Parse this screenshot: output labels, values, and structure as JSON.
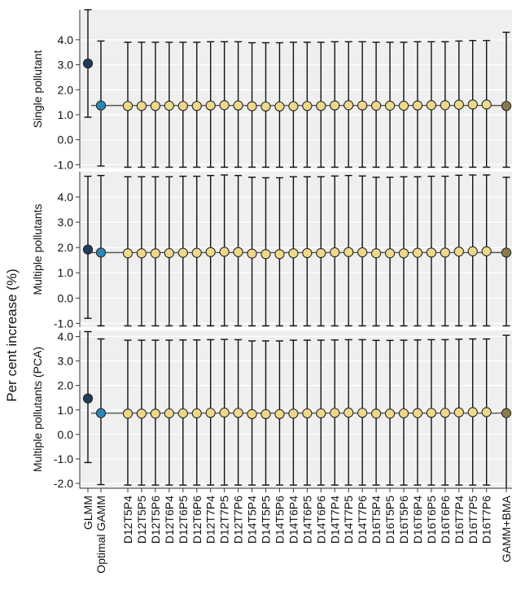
{
  "colors": {
    "panel_bg": "#efefef",
    "gridline": "#ffffff",
    "glmm": "#1e3a5c",
    "optimal_gamm": "#2b86b8",
    "models": "#eed88a",
    "gamm_bma": "#8c7a4c",
    "point_edge": "#2a2a2a",
    "reference_line": "#555555",
    "error_bar": "#111111"
  },
  "chart_data": {
    "type": "errorbar",
    "ylabel": "Per cent increase (%)",
    "categories": [
      "GLMM",
      "Optimal GAMM",
      "D12T5P4",
      "D12T5P5",
      "D12T5P6",
      "D12T6P4",
      "D12T6P5",
      "D12T6P6",
      "D12T7P4",
      "D12T7P5",
      "D12T7P6",
      "D14T5P4",
      "D14T5P5",
      "D14T5P6",
      "D14T6P4",
      "D14T6P5",
      "D14T6P6",
      "D14T7P4",
      "D14T7P5",
      "D14T7P6",
      "D16T5P4",
      "D16T5P5",
      "D16T5P6",
      "D16T6P4",
      "D16T6P5",
      "D16T6P6",
      "D16T7P4",
      "D16T7P5",
      "D16T7P6",
      "GAMM+BMA"
    ],
    "panels": [
      {
        "label": "Single pollutant",
        "ylim": [
          -1.15,
          5.2
        ],
        "yticks": [
          -1.0,
          0.0,
          1.0,
          2.0,
          3.0,
          4.0
        ],
        "tick_labels": [
          "-1.0",
          "0.0",
          "1.0",
          "2.0",
          "3.0",
          "4.0"
        ],
        "reference": 1.37,
        "estimates": [
          3.05,
          1.37,
          1.35,
          1.35,
          1.35,
          1.36,
          1.35,
          1.35,
          1.37,
          1.38,
          1.37,
          1.34,
          1.33,
          1.33,
          1.34,
          1.35,
          1.35,
          1.37,
          1.38,
          1.37,
          1.36,
          1.36,
          1.36,
          1.37,
          1.38,
          1.38,
          1.4,
          1.41,
          1.41,
          1.35
        ],
        "lower": [
          0.9,
          -1.05,
          -1.1,
          -1.1,
          -1.1,
          -1.1,
          -1.1,
          -1.1,
          -1.1,
          -1.1,
          -1.1,
          -1.1,
          -1.1,
          -1.1,
          -1.1,
          -1.1,
          -1.1,
          -1.1,
          -1.1,
          -1.1,
          -1.1,
          -1.1,
          -1.1,
          -1.1,
          -1.1,
          -1.1,
          -1.1,
          -1.1,
          -1.1,
          -1.1
        ],
        "upper": [
          5.2,
          3.95,
          3.9,
          3.9,
          3.9,
          3.9,
          3.9,
          3.9,
          3.92,
          3.92,
          3.92,
          3.88,
          3.88,
          3.88,
          3.9,
          3.9,
          3.9,
          3.92,
          3.92,
          3.92,
          3.9,
          3.9,
          3.9,
          3.92,
          3.92,
          3.92,
          3.95,
          3.97,
          3.97,
          4.3
        ]
      },
      {
        "label": "Multiple pollutants",
        "ylim": [
          -1.15,
          5.0
        ],
        "yticks": [
          -1.0,
          0.0,
          1.0,
          2.0,
          3.0,
          4.0
        ],
        "tick_labels": [
          "-1.0",
          "0.0",
          "1.0",
          "2.0",
          "3.0",
          "4.0"
        ],
        "reference": 1.8,
        "estimates": [
          1.92,
          1.8,
          1.77,
          1.77,
          1.77,
          1.78,
          1.79,
          1.79,
          1.82,
          1.83,
          1.82,
          1.76,
          1.74,
          1.74,
          1.77,
          1.78,
          1.78,
          1.81,
          1.82,
          1.81,
          1.77,
          1.77,
          1.77,
          1.79,
          1.8,
          1.8,
          1.84,
          1.85,
          1.85,
          1.8
        ],
        "lower": [
          -0.8,
          -1.1,
          -1.1,
          -1.1,
          -1.1,
          -1.1,
          -1.1,
          -1.1,
          -1.1,
          -1.1,
          -1.1,
          -1.1,
          -1.1,
          -1.1,
          -1.1,
          -1.1,
          -1.1,
          -1.1,
          -1.1,
          -1.1,
          -1.1,
          -1.1,
          -1.1,
          -1.1,
          -1.1,
          -1.1,
          -1.1,
          -1.1,
          -1.1,
          -1.1
        ],
        "upper": [
          4.82,
          4.85,
          4.8,
          4.8,
          4.8,
          4.8,
          4.82,
          4.82,
          4.85,
          4.87,
          4.85,
          4.78,
          4.76,
          4.76,
          4.8,
          4.8,
          4.8,
          4.83,
          4.85,
          4.83,
          4.78,
          4.78,
          4.8,
          4.8,
          4.82,
          4.82,
          4.86,
          4.87,
          4.87,
          4.78
        ]
      },
      {
        "label": "Multiple pollutants (PCA)",
        "ylim": [
          -2.2,
          4.25
        ],
        "yticks": [
          -2.0,
          -1.0,
          0.0,
          1.0,
          2.0,
          3.0,
          4.0
        ],
        "tick_labels": [
          "-2.0",
          "-1.0",
          "0.0",
          "1.0",
          "2.0",
          "3.0",
          "4.0"
        ],
        "reference": 0.87,
        "estimates": [
          1.47,
          0.87,
          0.85,
          0.85,
          0.85,
          0.86,
          0.86,
          0.86,
          0.88,
          0.89,
          0.88,
          0.83,
          0.83,
          0.83,
          0.85,
          0.86,
          0.86,
          0.88,
          0.89,
          0.88,
          0.85,
          0.85,
          0.86,
          0.87,
          0.88,
          0.88,
          0.9,
          0.91,
          0.91,
          0.87
        ],
        "lower": [
          -1.15,
          -2.05,
          -2.07,
          -2.07,
          -2.07,
          -2.07,
          -2.07,
          -2.07,
          -2.07,
          -2.07,
          -2.07,
          -2.07,
          -2.07,
          -2.07,
          -2.07,
          -2.07,
          -2.07,
          -2.07,
          -2.07,
          -2.07,
          -2.07,
          -2.07,
          -2.07,
          -2.07,
          -2.07,
          -2.07,
          -2.07,
          -2.07,
          -2.07,
          -2.22
        ],
        "upper": [
          4.2,
          3.9,
          3.85,
          3.85,
          3.85,
          3.85,
          3.86,
          3.86,
          3.87,
          3.88,
          3.87,
          3.82,
          3.82,
          3.82,
          3.85,
          3.85,
          3.85,
          3.86,
          3.87,
          3.87,
          3.84,
          3.84,
          3.85,
          3.86,
          3.87,
          3.87,
          3.89,
          3.9,
          3.9,
          4.05
        ]
      }
    ],
    "grid": true,
    "grid_axis": "y"
  }
}
